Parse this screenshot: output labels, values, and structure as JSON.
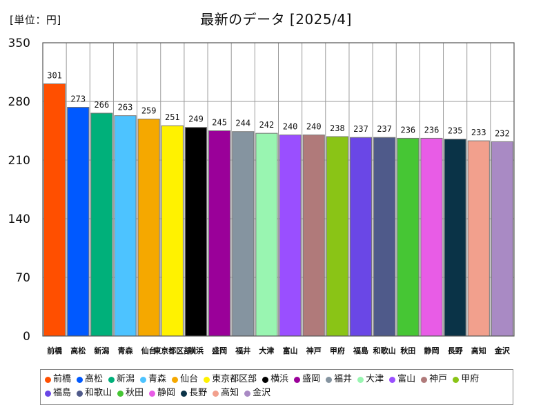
{
  "unit_label": "[単位：円]",
  "title": "最新のデータ [2025/4]",
  "chart_data": {
    "type": "bar",
    "title": "最新のデータ [2025/4]",
    "ylabel": "[単位：円]",
    "ylim": [
      0,
      350
    ],
    "yticks": [
      "0",
      "70",
      "140",
      "210",
      "280",
      "350"
    ],
    "ytick_values": [
      0,
      70,
      140,
      210,
      280,
      350
    ],
    "grid": true,
    "legend_position": "bottom",
    "categories": [
      "前橋",
      "高松",
      "新潟",
      "青森",
      "仙台",
      "東京都区部",
      "横浜",
      "盛岡",
      "福井",
      "大津",
      "富山",
      "神戸",
      "甲府",
      "福島",
      "和歌山",
      "秋田",
      "静岡",
      "長野",
      "高知",
      "金沢"
    ],
    "values": [
      301,
      273,
      266,
      263,
      259,
      251,
      249,
      245,
      244,
      242,
      240,
      240,
      238,
      237,
      237,
      236,
      236,
      235,
      233,
      232
    ],
    "value_labels": [
      "301",
      "273",
      "266",
      "263",
      "259",
      "251",
      "249",
      "245",
      "244",
      "242",
      "240",
      "240",
      "238",
      "237",
      "237",
      "236",
      "236",
      "235",
      "233",
      "232"
    ],
    "colors": [
      "#ff4f00",
      "#0059ff",
      "#00b07a",
      "#4dc3ff",
      "#f5a800",
      "#fff200",
      "#000000",
      "#9a0099",
      "#8594a0",
      "#99f5b1",
      "#9a4fff",
      "#b07a7a",
      "#8ac416",
      "#6a47e6",
      "#4f5a8a",
      "#46c634",
      "#e85ce6",
      "#0a3347",
      "#f2a08d",
      "#a98ac4"
    ]
  }
}
